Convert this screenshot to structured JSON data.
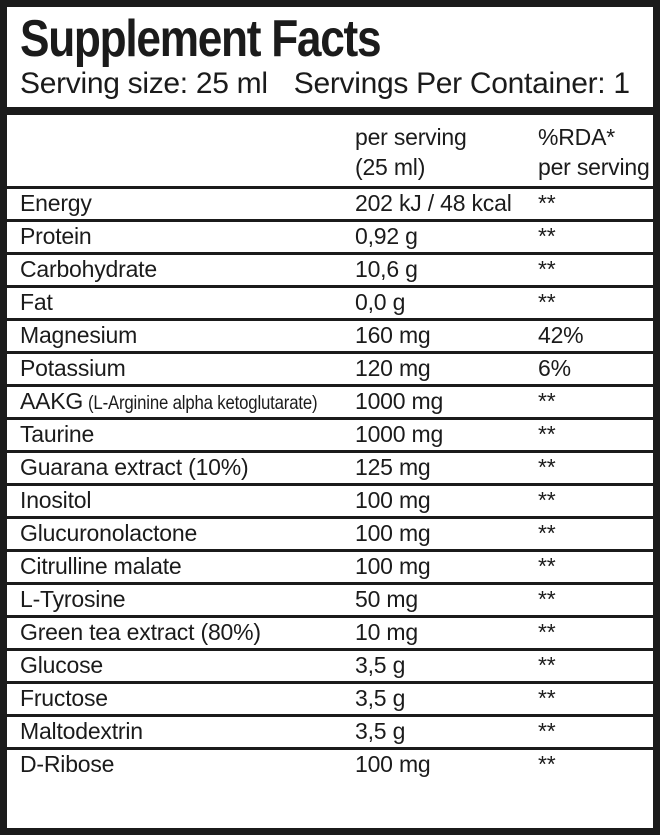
{
  "colors": {
    "ink": "#1b1b1b",
    "background": "#ffffff"
  },
  "header": {
    "title": "Supplement Facts",
    "serving_size": "Serving size: 25 ml",
    "servings_per_container": "Servings Per Container: 1"
  },
  "table": {
    "columns": {
      "amount_line1": "per serving",
      "amount_line2": "(25 ml)",
      "rda_line1": "%RDA*",
      "rda_line2": "per serving"
    },
    "rows": [
      {
        "name": "Energy",
        "note": "",
        "amount": "202 kJ / 48 kcal",
        "rda": "**"
      },
      {
        "name": "Protein",
        "note": "",
        "amount": "0,92 g",
        "rda": "**"
      },
      {
        "name": "Carbohydrate",
        "note": "",
        "amount": "10,6 g",
        "rda": "**"
      },
      {
        "name": "Fat",
        "note": "",
        "amount": "0,0 g",
        "rda": "**"
      },
      {
        "name": "Magnesium",
        "note": "",
        "amount": "160 mg",
        "rda": "42%"
      },
      {
        "name": "Potassium",
        "note": "",
        "amount": "120 mg",
        "rda": "6%"
      },
      {
        "name": "AAKG",
        "note": "(L-Arginine alpha ketoglutarate)",
        "amount": "1000 mg",
        "rda": "**"
      },
      {
        "name": "Taurine",
        "note": "",
        "amount": "1000 mg",
        "rda": "**"
      },
      {
        "name": "Guarana extract (10%)",
        "note": "",
        "amount": "125 mg",
        "rda": "**"
      },
      {
        "name": "Inositol",
        "note": "",
        "amount": "100 mg",
        "rda": "**"
      },
      {
        "name": "Glucuronolactone",
        "note": "",
        "amount": "100 mg",
        "rda": "**"
      },
      {
        "name": "Citrulline malate",
        "note": "",
        "amount": "100 mg",
        "rda": "**"
      },
      {
        "name": "L-Tyrosine",
        "note": "",
        "amount": "50 mg",
        "rda": "**"
      },
      {
        "name": "Green tea extract (80%)",
        "note": "",
        "amount": "10 mg",
        "rda": "**"
      },
      {
        "name": "Glucose",
        "note": "",
        "amount": "3,5 g",
        "rda": "**"
      },
      {
        "name": "Fructose",
        "note": "",
        "amount": "3,5 g",
        "rda": "**"
      },
      {
        "name": "Maltodextrin",
        "note": "",
        "amount": "3,5 g",
        "rda": "**"
      },
      {
        "name": "D-Ribose",
        "note": "",
        "amount": "100 mg",
        "rda": "**"
      }
    ]
  }
}
